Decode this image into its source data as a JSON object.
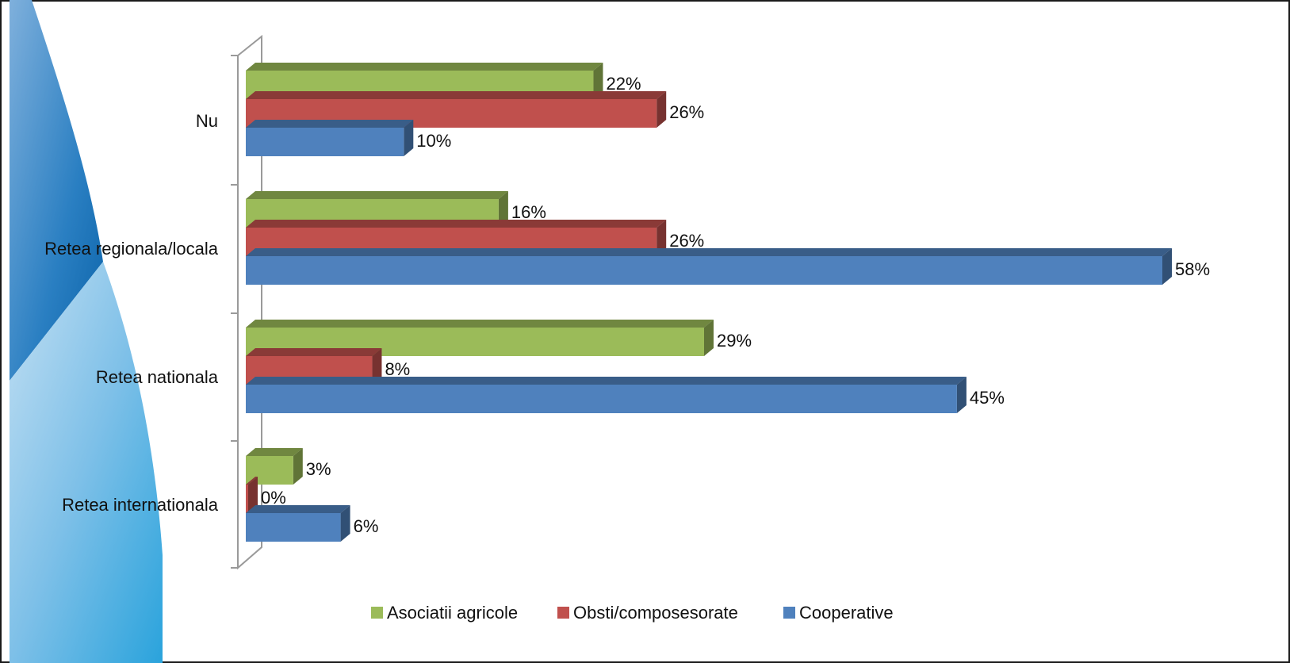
{
  "chart_data": {
    "type": "bar",
    "orientation": "horizontal",
    "style": "3d",
    "categories": [
      "Nu",
      "Retea regionala/locala",
      "Retea nationala",
      "Retea internationala"
    ],
    "series": [
      {
        "name": "Asociatii agricole",
        "color": "#9BBB59",
        "values": [
          22,
          16,
          29,
          3
        ],
        "labels": [
          "22%",
          "16%",
          "29%",
          "3%"
        ]
      },
      {
        "name": "Obsti/composesorate",
        "color": "#C0504D",
        "values": [
          26,
          26,
          8,
          0
        ],
        "labels": [
          "26%",
          "26%",
          "8%",
          "0%"
        ]
      },
      {
        "name": "Cooperative",
        "color": "#4F81BD",
        "values": [
          10,
          58,
          45,
          6
        ],
        "labels": [
          "10%",
          "58%",
          "45%",
          "6%"
        ]
      }
    ],
    "xlim": [
      0,
      58
    ],
    "grid": false,
    "legend_position": "bottom"
  }
}
